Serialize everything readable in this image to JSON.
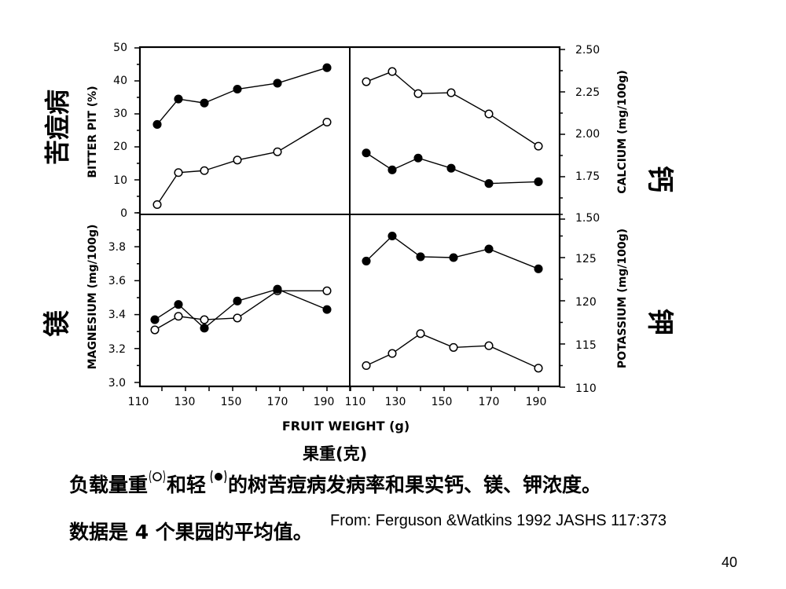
{
  "chart_data": [
    {
      "type": "line",
      "panel": "top-left",
      "ylabel": "BITTER PIT (%)",
      "ylabel_cn": "苦痘病",
      "ylim": [
        0,
        50
      ],
      "yticks": [
        "0",
        "10",
        "20",
        "30",
        "40",
        "50"
      ],
      "xlim": [
        110,
        200
      ],
      "series": [
        {
          "marker": "open",
          "x": [
            118,
            127,
            138,
            152,
            169,
            190
          ],
          "y": [
            2.5,
            12.2,
            12.8,
            16,
            18.5,
            27.5
          ]
        },
        {
          "marker": "filled",
          "x": [
            118,
            127,
            138,
            152,
            169,
            190
          ],
          "y": [
            26.8,
            34.5,
            33.3,
            37.5,
            39.3,
            44
          ]
        }
      ]
    },
    {
      "type": "line",
      "panel": "top-right",
      "ylabel": "CALCIUM (mg/100g)",
      "ylabel_cn": "钙",
      "ylim": [
        1.5,
        2.5
      ],
      "yticks": [
        "1.50",
        "1.75",
        "2.00",
        "2.25",
        "2.50"
      ],
      "xlim": [
        110,
        200
      ],
      "series": [
        {
          "marker": "open",
          "x": [
            117,
            128,
            139,
            153,
            169,
            190
          ],
          "y": [
            2.31,
            2.37,
            2.24,
            2.245,
            2.12,
            1.93
          ]
        },
        {
          "marker": "filled",
          "x": [
            117,
            128,
            139,
            153,
            169,
            190
          ],
          "y": [
            1.89,
            1.79,
            1.86,
            1.8,
            1.71,
            1.72
          ]
        }
      ]
    },
    {
      "type": "line",
      "panel": "bottom-left",
      "ylabel": "MAGNESIUM (mg/100g)",
      "ylabel_cn": "镁",
      "ylim": [
        3.0,
        4.0
      ],
      "yticks": [
        "3.0",
        "3.2",
        "3.4",
        "3.6",
        "3.8"
      ],
      "xlim": [
        110,
        200
      ],
      "xticks": [
        "110",
        "130",
        "150",
        "170",
        "190"
      ],
      "series": [
        {
          "marker": "open",
          "x": [
            117,
            127,
            138,
            152,
            169,
            190
          ],
          "y": [
            3.31,
            3.39,
            3.37,
            3.38,
            3.54,
            3.54
          ]
        },
        {
          "marker": "filled",
          "x": [
            117,
            127,
            138,
            152,
            169,
            190
          ],
          "y": [
            3.37,
            3.46,
            3.32,
            3.48,
            3.55,
            3.43
          ]
        }
      ]
    },
    {
      "type": "line",
      "panel": "bottom-right",
      "ylabel": "POTASSIUM (mg/100g)",
      "ylabel_cn": "钾",
      "ylim": [
        110,
        130
      ],
      "yticks": [
        "110",
        "115",
        "120",
        "125"
      ],
      "xlim": [
        110,
        200
      ],
      "xticks": [
        "110",
        "130",
        "150",
        "170",
        "190"
      ],
      "series": [
        {
          "marker": "open",
          "x": [
            117,
            128,
            140,
            154,
            169,
            190
          ],
          "y": [
            112.5,
            113.9,
            116.2,
            114.6,
            114.8,
            112.2
          ]
        },
        {
          "marker": "filled",
          "x": [
            117,
            128,
            140,
            154,
            169,
            190
          ],
          "y": [
            124.6,
            127.5,
            125.1,
            125,
            126,
            123.7
          ]
        }
      ]
    }
  ],
  "xlabel": "FRUIT WEIGHT (g)",
  "xlabel_cn": "果重(克)",
  "caption_line1_a": "负载量重",
  "caption_line1_b": "和轻",
  "caption_line1_c": "的树苦痘病发病率和果实钙、镁、钾浓度。",
  "caption_line2": "数据是 4 个果园的平均值。",
  "source": "From: Ferguson &Watkins 1992 JASHS 117:373",
  "page_number": "40"
}
